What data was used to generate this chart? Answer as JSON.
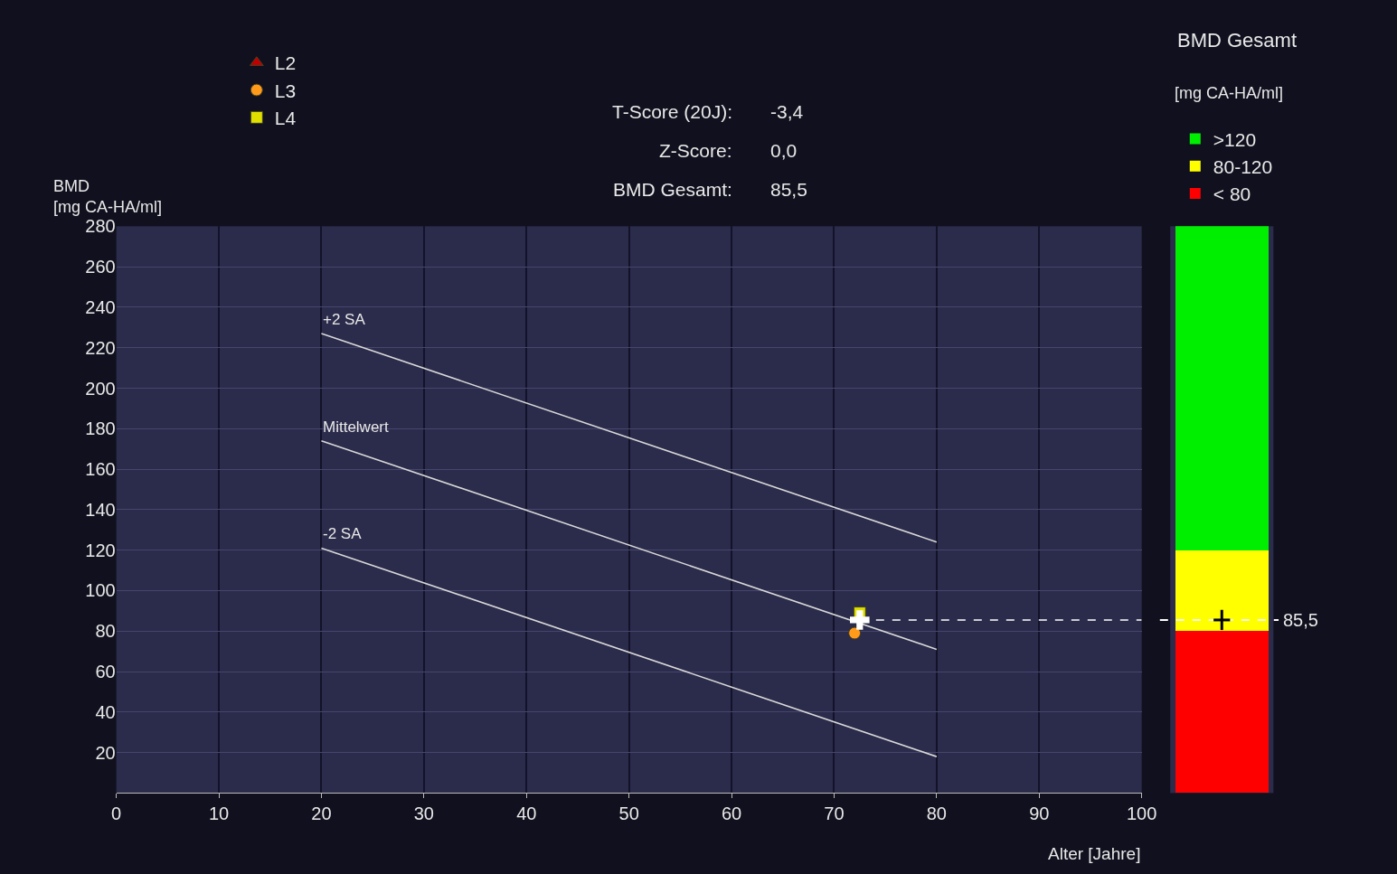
{
  "chart_data": [
    {
      "type": "line",
      "xlabel": "Alter [Jahre]",
      "ylabel": "BMD\n[mg CA-HA/ml]",
      "annotations": [
        "T-Score (20J):",
        "-3,4",
        "Z-Score:",
        "0,0",
        "BMD Gesamt:",
        "85,5"
      ],
      "xlim": [
        0,
        100
      ],
      "xticks": [
        0,
        10,
        20,
        30,
        40,
        50,
        60,
        70,
        80,
        90,
        100
      ],
      "ylim": [
        0,
        280
      ],
      "yticks": [
        20,
        40,
        60,
        80,
        100,
        120,
        140,
        160,
        180,
        200,
        220,
        240,
        260,
        280
      ],
      "grid": true,
      "legend": "top left",
      "series": [
        {
          "name": "+2 SA",
          "type": "line",
          "color": "#d8d8d8",
          "x": [
            20,
            80
          ],
          "values": [
            227,
            124
          ]
        },
        {
          "name": "Mittelwert",
          "type": "line",
          "color": "#d8d8d8",
          "x": [
            20,
            80
          ],
          "values": [
            174,
            71
          ]
        },
        {
          "name": "-2 SA",
          "type": "line",
          "color": "#d8d8d8",
          "x": [
            20,
            80
          ],
          "values": [
            121,
            18
          ]
        },
        {
          "type": "line",
          "color": "#ffffff",
          "line_style": "dashed",
          "x": [
            72.5,
            100
          ],
          "values": [
            85.5,
            85.5
          ]
        },
        {
          "name": "L2",
          "type": "scatter",
          "marker": "triangle",
          "color": "#c00000"
        },
        {
          "name": "L3",
          "type": "scatter",
          "marker": "circle",
          "color": "#ff9a1a",
          "x": [
            72
          ],
          "values": [
            79
          ]
        },
        {
          "name": "L4",
          "type": "scatter",
          "marker": "square",
          "color": "#e0e000",
          "x": [
            72.5
          ],
          "values": [
            89
          ]
        },
        {
          "type": "scatter",
          "marker": "cross",
          "color": "#ffffff",
          "x": [
            72.5
          ],
          "values": [
            85.5
          ]
        }
      ]
    },
    {
      "type": "bar",
      "title": "BMD Gesamt",
      "subtitle": "[mg CA-HA/ml]",
      "stacked": true,
      "categories": [
        null
      ],
      "ylim": [
        0,
        280
      ],
      "tick_labels": false,
      "legend": "top",
      "ref_lines": [
        {
          "axis": "y",
          "value": 85.5,
          "label": "85,5",
          "color": "#ffffff",
          "line_style": "dashed"
        }
      ],
      "series": [
        {
          "name": "< 80",
          "color": "#ff0000",
          "values": [
            80
          ]
        },
        {
          "name": "80-120",
          "color": "#ffff00",
          "values": [
            40
          ]
        },
        {
          "name": ">120",
          "color": "#00ee00",
          "values": [
            160
          ]
        }
      ]
    }
  ]
}
